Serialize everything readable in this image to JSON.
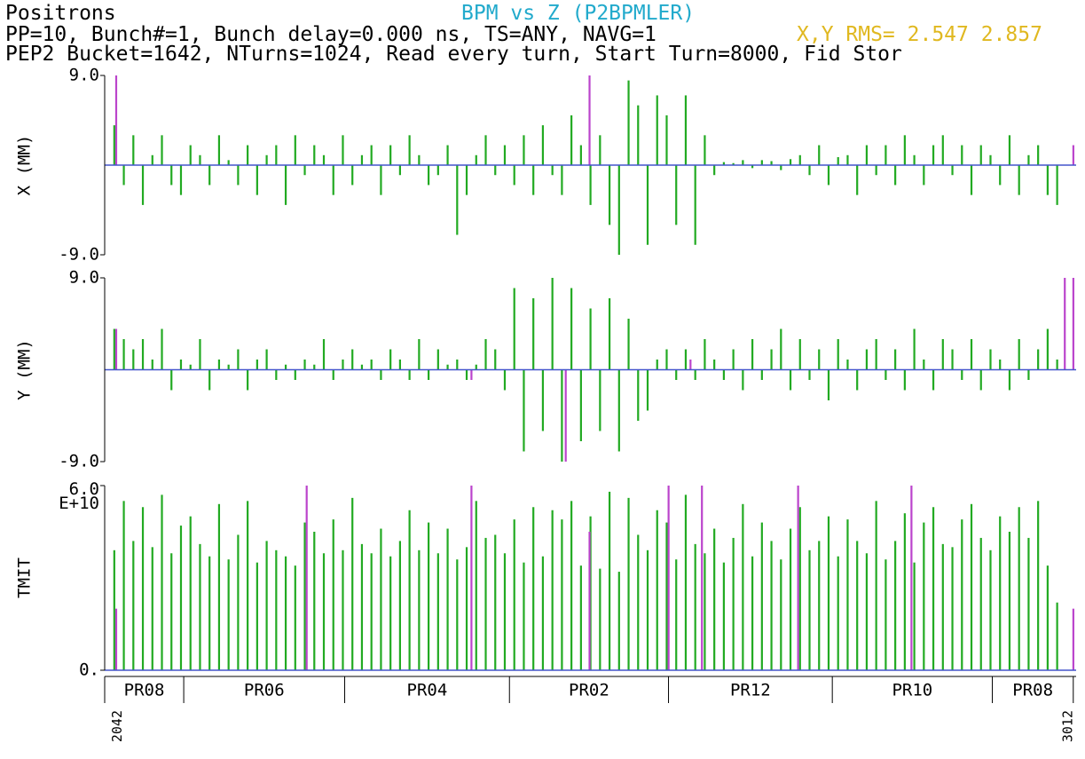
{
  "header": {
    "species": "Positrons",
    "title": "BPM vs Z (P2BPMLER)",
    "line2": "PP=10, Bunch#=1, Bunch delay=0.000 ns, TS=ANY, NAVG=1",
    "rms": "X,Y RMS= 2.547 2.857",
    "line3": "PEP2 Bucket=1642, NTurns=1024, Read every turn, Start Turn=8000, Fid Stor"
  },
  "chart_data": [
    {
      "type": "bar",
      "ylabel": "X (MM)",
      "xlim": [
        -1,
        101
      ],
      "ylim": [
        -9,
        9
      ],
      "yticks": [
        {
          "value": -9,
          "label": "-9.0"
        },
        {
          "value": 9,
          "label": "9.0"
        }
      ],
      "series": [
        {
          "color": "#22aa22",
          "x": [
            0,
            1,
            2,
            3,
            4,
            5,
            6,
            7,
            8,
            9,
            10,
            11,
            12,
            13,
            14,
            15,
            16,
            17,
            18,
            19,
            20,
            21,
            22,
            23,
            24,
            25,
            26,
            27,
            28,
            29,
            30,
            31,
            32,
            33,
            34,
            35,
            36,
            37,
            38,
            39,
            40,
            41,
            42,
            43,
            44,
            45,
            46,
            47,
            48,
            49,
            50,
            51,
            52,
            53,
            54,
            55,
            56,
            57,
            58,
            59,
            60,
            61,
            62,
            63,
            64,
            65,
            66,
            67,
            68,
            69,
            70,
            71,
            72,
            73,
            74,
            75,
            76,
            77,
            78,
            79,
            80,
            81,
            82,
            83,
            84,
            85,
            86,
            87,
            88,
            89,
            90,
            91,
            92,
            93,
            94,
            95,
            96,
            97,
            98,
            99
          ],
          "values": [
            4,
            -2,
            3,
            -4,
            1,
            3,
            -2,
            -3,
            2,
            1,
            -2,
            3,
            0.5,
            -2,
            2,
            -3,
            1,
            2,
            -4,
            3,
            -1,
            2,
            1,
            -3,
            3,
            -2,
            1,
            2,
            -3,
            2,
            -1,
            3,
            1,
            -2,
            -1,
            2,
            -7,
            -3,
            1,
            3,
            -1,
            2,
            -2,
            3,
            -3,
            4,
            -1,
            -3,
            5,
            2,
            -4,
            3,
            -6,
            -9,
            8.5,
            6,
            -8,
            7,
            5,
            -6,
            7,
            -8,
            3,
            -1,
            0.3,
            0.2,
            0.5,
            -0.3,
            0.5,
            0.4,
            -0.5,
            0.6,
            1,
            -1,
            2,
            -2,
            0.8,
            1,
            -3,
            2,
            -1,
            2,
            -2,
            3,
            1,
            -2,
            2,
            3,
            -1,
            2,
            -3,
            2,
            1,
            -2,
            3,
            -3,
            1,
            2,
            -3,
            -4
          ]
        },
        {
          "color": "#bb44cc",
          "x": [
            0.2,
            49.9,
            100.7
          ],
          "values": [
            9,
            9,
            2
          ]
        }
      ]
    },
    {
      "type": "bar",
      "ylabel": "Y (MM)",
      "xlim": [
        -1,
        101
      ],
      "ylim": [
        -9,
        9
      ],
      "yticks": [
        {
          "value": -9,
          "label": "-9.0"
        },
        {
          "value": 9,
          "label": "9.0"
        }
      ],
      "series": [
        {
          "color": "#22aa22",
          "x": [
            0,
            1,
            2,
            3,
            4,
            5,
            6,
            7,
            8,
            9,
            10,
            11,
            12,
            13,
            14,
            15,
            16,
            17,
            18,
            19,
            20,
            21,
            22,
            23,
            24,
            25,
            26,
            27,
            28,
            29,
            30,
            31,
            32,
            33,
            34,
            35,
            36,
            37,
            38,
            39,
            40,
            41,
            42,
            43,
            44,
            45,
            46,
            47,
            48,
            49,
            50,
            51,
            52,
            53,
            54,
            55,
            56,
            57,
            58,
            59,
            60,
            61,
            62,
            63,
            64,
            65,
            66,
            67,
            68,
            69,
            70,
            71,
            72,
            73,
            74,
            75,
            76,
            77,
            78,
            79,
            80,
            81,
            82,
            83,
            84,
            85,
            86,
            87,
            88,
            89,
            90,
            91,
            92,
            93,
            94,
            95,
            96,
            97,
            98,
            99
          ],
          "values": [
            4,
            3,
            2,
            3,
            1,
            4,
            -2,
            1,
            0.5,
            3,
            -2,
            1,
            0.5,
            2,
            -2,
            1,
            2,
            -1,
            0.5,
            -1,
            1,
            0.5,
            3,
            -1,
            1,
            2,
            0.5,
            1,
            -1,
            2,
            1,
            -1,
            3,
            -1,
            2,
            0.5,
            1,
            -1,
            0.5,
            3,
            2,
            -2,
            8,
            -8,
            7,
            -6,
            9,
            -9,
            8,
            -7,
            6,
            -6,
            7,
            -8,
            5,
            -5,
            -4,
            1,
            2,
            -1,
            2,
            -1,
            3,
            1,
            -1,
            2,
            -2,
            3,
            -1,
            2,
            4,
            -2,
            3,
            -1,
            2,
            -3,
            3,
            1,
            -2,
            2,
            3,
            -1,
            2,
            -2,
            4,
            1,
            -2,
            3,
            2,
            -1,
            3,
            -2,
            2,
            1,
            -2,
            3,
            -1,
            2,
            4,
            1
          ]
        },
        {
          "color": "#bb44cc",
          "x": [
            0.2,
            37.5,
            47.4,
            60.5,
            99.8,
            100.7
          ],
          "values": [
            4,
            -1,
            -9,
            1,
            9,
            9
          ]
        }
      ]
    },
    {
      "type": "bar",
      "ylabel": "TMIT",
      "xlim": [
        -1,
        101
      ],
      "ylim": [
        0,
        60000000000
      ],
      "yticks": [
        {
          "value": 0,
          "label": "0."
        },
        {
          "value": 60000000000,
          "label": "6.0 E+10"
        }
      ],
      "series": [
        {
          "color": "#22aa22",
          "x": [
            0,
            1,
            2,
            3,
            4,
            5,
            6,
            7,
            8,
            9,
            10,
            11,
            12,
            13,
            14,
            15,
            16,
            17,
            18,
            19,
            20,
            21,
            22,
            23,
            24,
            25,
            26,
            27,
            28,
            29,
            30,
            31,
            32,
            33,
            34,
            35,
            36,
            37,
            38,
            39,
            40,
            41,
            42,
            43,
            44,
            45,
            46,
            47,
            48,
            49,
            50,
            51,
            52,
            53,
            54,
            55,
            56,
            57,
            58,
            59,
            60,
            61,
            62,
            63,
            64,
            65,
            66,
            67,
            68,
            69,
            70,
            71,
            72,
            73,
            74,
            75,
            76,
            77,
            78,
            79,
            80,
            81,
            82,
            83,
            84,
            85,
            86,
            87,
            88,
            89,
            90,
            91,
            92,
            93,
            94,
            95,
            96,
            97,
            98,
            99
          ],
          "values": [
            39000000000.0,
            55000000000.0,
            42000000000.0,
            53000000000.0,
            40000000000.0,
            57000000000.0,
            38000000000.0,
            47000000000.0,
            50000000000.0,
            41000000000.0,
            37000000000.0,
            54000000000.0,
            36000000000.0,
            44000000000.0,
            55000000000.0,
            35000000000.0,
            42000000000.0,
            39000000000.0,
            37000000000.0,
            34000000000.0,
            48000000000.0,
            45000000000.0,
            38000000000.0,
            49000000000.0,
            39000000000.0,
            56000000000.0,
            41000000000.0,
            38000000000.0,
            46000000000.0,
            37000000000.0,
            42000000000.0,
            52000000000.0,
            39000000000.0,
            48000000000.0,
            38000000000.0,
            46000000000.0,
            36000000000.0,
            40000000000.0,
            55000000000.0,
            43000000000.0,
            44000000000.0,
            38000000000.0,
            49000000000.0,
            35000000000.0,
            53000000000.0,
            37000000000.0,
            52000000000.0,
            49000000000.0,
            55000000000.0,
            34000000000.0,
            50000000000.0,
            33000000000.0,
            58000000000.0,
            32000000000.0,
            56000000000.0,
            44000000000.0,
            39000000000.0,
            52000000000.0,
            48000000000.0,
            36000000000.0,
            57000000000.0,
            41000000000.0,
            38000000000.0,
            46000000000.0,
            35000000000.0,
            43000000000.0,
            54000000000.0,
            37000000000.0,
            48000000000.0,
            42000000000.0,
            36000000000.0,
            46000000000.0,
            53000000000.0,
            39000000000.0,
            42000000000.0,
            50000000000.0,
            37000000000.0,
            49000000000.0,
            42000000000.0,
            38000000000.0,
            55000000000.0,
            36000000000.0,
            42000000000.0,
            51000000000.0,
            35000000000.0,
            48000000000.0,
            53000000000.0,
            41000000000.0,
            40000000000.0,
            49000000000.0,
            54000000000.0,
            43000000000.0,
            39000000000.0,
            50000000000.0,
            45000000000.0,
            53000000000.0,
            43000000000.0,
            55000000000.0,
            34000000000.0,
            22000000000.0
          ]
        },
        {
          "color": "#bb44cc",
          "x": [
            0.2,
            20.2,
            37.5,
            49.9,
            58.2,
            61.7,
            71.8,
            83.7,
            100.7
          ],
          "values": [
            20000000000.0,
            60000000000.0,
            60000000000.0,
            45000000000.0,
            60000000000.0,
            60000000000.0,
            60000000000.0,
            60000000000.0,
            20000000000.0
          ]
        }
      ]
    }
  ],
  "sectors": {
    "boundaries": [
      -1,
      7.3,
      24.2,
      41.5,
      58.2,
      75.4,
      92.2,
      100.7
    ],
    "labels": [
      "PR08",
      "PR06",
      "PR04",
      "PR02",
      "PR12",
      "PR10",
      "PR08"
    ]
  },
  "bpm_labels": {
    "x": [
      0,
      99.8
    ],
    "labels": [
      "2042",
      "3012"
    ]
  }
}
